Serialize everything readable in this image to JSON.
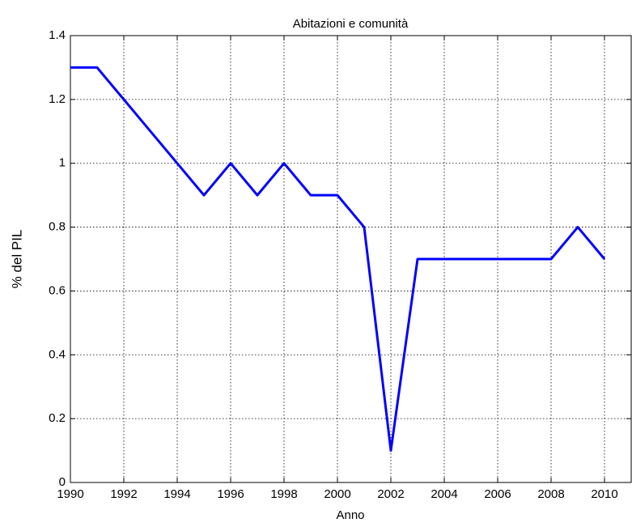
{
  "chart_data": {
    "type": "line",
    "title": "Abitazioni e comunità",
    "xlabel": "Anno",
    "ylabel": "% del PIL",
    "x": [
      1990,
      1991,
      1992,
      1993,
      1994,
      1995,
      1996,
      1997,
      1998,
      1999,
      2000,
      2001,
      2002,
      2003,
      2004,
      2005,
      2006,
      2007,
      2008,
      2009,
      2010
    ],
    "series": [
      {
        "name": "Abitazioni e comunità",
        "color": "#0000ff",
        "values": [
          1.3,
          1.3,
          1.2,
          1.1,
          1.0,
          0.9,
          1.0,
          0.9,
          1.0,
          0.9,
          0.9,
          0.8,
          0.1,
          0.7,
          0.7,
          0.7,
          0.7,
          0.7,
          0.7,
          0.8,
          0.7
        ]
      }
    ],
    "xlim": [
      1990,
      2011
    ],
    "xticks": [
      1990,
      1992,
      1994,
      1996,
      1998,
      2000,
      2002,
      2004,
      2006,
      2008,
      2010
    ],
    "ylim": [
      0,
      1.4
    ],
    "yticks": [
      0,
      0.2,
      0.4,
      0.6,
      0.8,
      1,
      1.2,
      1.4
    ],
    "grid": true
  }
}
